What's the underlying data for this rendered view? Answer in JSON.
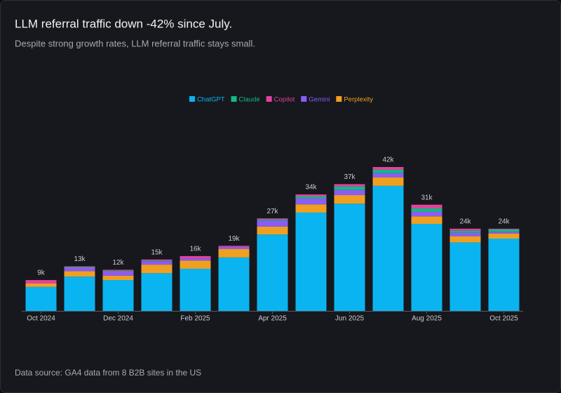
{
  "chart_data": {
    "type": "stacked-bar",
    "title": "LLM referral traffic down -42% since July.",
    "subtitle": "Despite strong growth rates, LLM referral traffic stays small.",
    "source": "Data source: GA4 data from 8 B2B sites in the US",
    "categories": [
      "Oct 2024",
      null,
      "Dec 2024",
      null,
      "Feb 2025",
      null,
      "Apr 2025",
      null,
      "Jun 2025",
      null,
      "Aug 2025",
      null,
      "Oct 2025"
    ],
    "series": [
      {
        "name": "ChatGPT",
        "color": "#0ab4f0",
        "values": [
          7000,
          10000,
          9000,
          11000,
          12300,
          15600,
          22300,
          28700,
          31300,
          36500,
          25400,
          20000,
          21100
        ]
      },
      {
        "name": "Claude",
        "color": "#14b88a",
        "values": [
          0,
          200,
          200,
          200,
          0,
          0,
          300,
          600,
          1000,
          1000,
          1000,
          600,
          700
        ]
      },
      {
        "name": "Copilot",
        "color": "#e0449a",
        "values": [
          1000,
          200,
          300,
          300,
          700,
          300,
          300,
          600,
          700,
          800,
          1100,
          600,
          200
        ]
      },
      {
        "name": "Gemini",
        "color": "#8b5cf6",
        "values": [
          0,
          1000,
          1200,
          1000,
          600,
          600,
          1800,
          1700,
          1500,
          1200,
          1300,
          1000,
          500
        ]
      },
      {
        "name": "Perplexity",
        "color": "#f0a020",
        "values": [
          1000,
          1600,
          1300,
          2500,
          2400,
          2500,
          2300,
          2400,
          2500,
          2500,
          2200,
          1800,
          1500
        ]
      }
    ],
    "totals": [
      9000,
      13000,
      12000,
      15000,
      16000,
      19000,
      27000,
      34000,
      37000,
      42000,
      31000,
      24000,
      24000
    ],
    "total_labels": [
      "9k",
      "13k",
      "12k",
      "15k",
      "16k",
      "19k",
      "27k",
      "34k",
      "37k",
      "42k",
      "31k",
      "24k",
      "24k"
    ]
  }
}
